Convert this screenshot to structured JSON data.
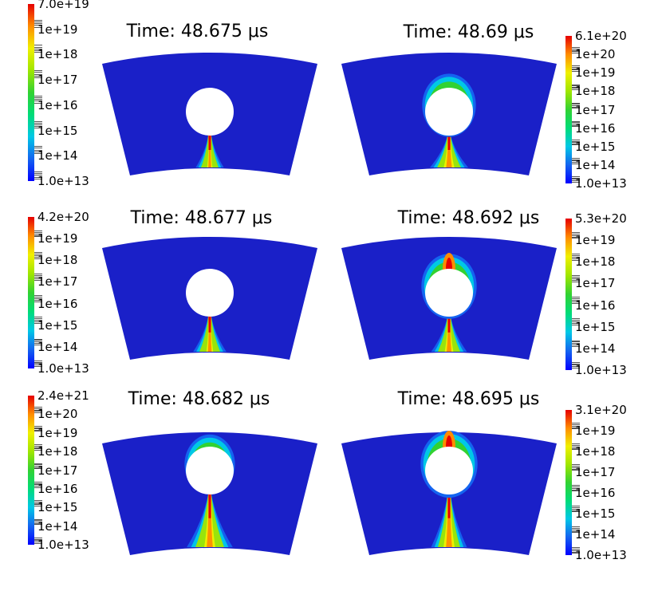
{
  "figure": {
    "panels": [
      {
        "id": "p1",
        "title": "Time: 48.675 μs",
        "colorbar": {
          "labels": [
            "7.0e+19",
            "1e+19",
            "1e+18",
            "1e+17",
            "1e+16",
            "1e+15",
            "1e+14",
            "1.0e+13"
          ]
        },
        "features": {
          "cap_above_hole": 0.0,
          "jet_strength": 0.55,
          "jet_width": 0.5
        }
      },
      {
        "id": "p2",
        "title": "Time: 48.69 μs",
        "colorbar": {
          "labels": [
            "6.1e+20",
            "1e+20",
            "1e+19",
            "1e+18",
            "1e+17",
            "1e+16",
            "1e+15",
            "1e+14",
            "1.0e+13"
          ]
        },
        "features": {
          "cap_above_hole": 0.6,
          "jet_strength": 0.8,
          "jet_width": 0.9
        }
      },
      {
        "id": "p3",
        "title": "Time: 48.677 μs",
        "colorbar": {
          "labels": [
            "4.2e+20",
            "1e+19",
            "1e+18",
            "1e+17",
            "1e+16",
            "1e+15",
            "1e+14",
            "1.0e+13"
          ]
        },
        "features": {
          "cap_above_hole": 0.0,
          "jet_strength": 0.6,
          "jet_width": 0.7
        }
      },
      {
        "id": "p4",
        "title": "Time: 48.692 μs",
        "colorbar": {
          "labels": [
            "5.3e+20",
            "1e+19",
            "1e+18",
            "1e+17",
            "1e+16",
            "1e+15",
            "1e+14",
            "1.0e+13"
          ]
        },
        "features": {
          "cap_above_hole": 0.8,
          "jet_strength": 0.7,
          "jet_width": 0.8
        }
      },
      {
        "id": "p5",
        "title": "Time: 48.682 μs",
        "colorbar": {
          "labels": [
            "2.4e+21",
            "1e+20",
            "1e+19",
            "1e+18",
            "1e+17",
            "1e+16",
            "1e+15",
            "1e+14",
            "1.0e+13"
          ]
        },
        "features": {
          "cap_above_hole": 0.2,
          "jet_strength": 0.7,
          "jet_width": 1.2
        }
      },
      {
        "id": "p6",
        "title": "Time: 48.695 μs",
        "colorbar": {
          "labels": [
            "3.1e+20",
            "1e+19",
            "1e+18",
            "1e+17",
            "1e+16",
            "1e+15",
            "1e+14",
            "1.0e+13"
          ]
        },
        "features": {
          "cap_above_hole": 1.0,
          "jet_strength": 0.9,
          "jet_width": 0.8
        }
      }
    ],
    "colors": {
      "background_field": "#1a20c8",
      "colormap": [
        "#0000ff",
        "#1464f0",
        "#00c8e6",
        "#00dc78",
        "#32d232",
        "#a0e600",
        "#f0f000",
        "#ff8c00",
        "#e60000"
      ]
    }
  }
}
